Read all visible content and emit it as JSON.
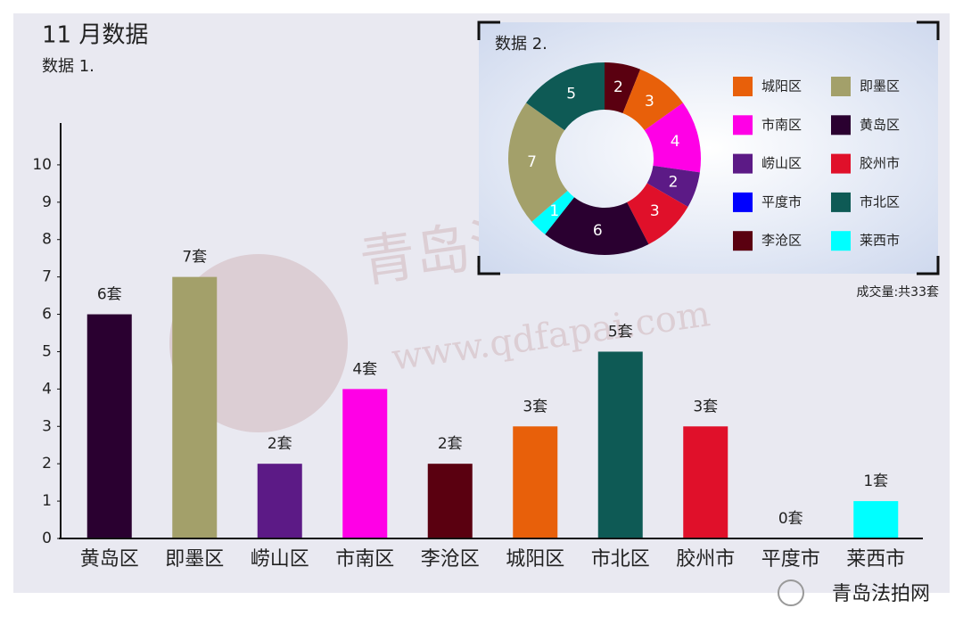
{
  "title": "11 月数据",
  "footer": "青岛法拍网",
  "watermark": [
    "青岛法拍网",
    "www.qdfapai.com"
  ],
  "chart_data": [
    {
      "type": "bar",
      "title": "数据 1.",
      "categories": [
        "黄岛区",
        "即墨区",
        "崂山区",
        "市南区",
        "李沧区",
        "城阳区",
        "市北区",
        "胶州市",
        "平度市",
        "莱西市"
      ],
      "values": [
        6,
        7,
        2,
        4,
        2,
        3,
        5,
        3,
        0,
        1
      ],
      "value_labels": [
        "6套",
        "7套",
        "2套",
        "4套",
        "2套",
        "3套",
        "5套",
        "3套",
        "0套",
        "1套"
      ],
      "colors": [
        "#2a0030",
        "#a3a06a",
        "#5c1a86",
        "#ff00e6",
        "#5a0010",
        "#e8600a",
        "#0e5a55",
        "#e0102a",
        "#0000ff",
        "#00ffff"
      ],
      "ylim": [
        0,
        11
      ],
      "yticks": [
        0,
        1,
        2,
        3,
        4,
        5,
        6,
        7,
        8,
        9,
        10
      ],
      "grid": false
    },
    {
      "type": "pie",
      "title": "数据 2.",
      "donut": true,
      "categories": [
        "城阳区",
        "即墨区",
        "市南区",
        "黄岛区",
        "崂山区",
        "胶州市",
        "平度市",
        "市北区",
        "李沧区",
        "莱西市"
      ],
      "values": [
        3,
        7,
        4,
        6,
        2,
        3,
        0,
        5,
        2,
        1
      ],
      "colors": [
        "#e8600a",
        "#a3a06a",
        "#ff00e6",
        "#2a0030",
        "#5c1a86",
        "#e0102a",
        "#0000ff",
        "#0e5a55",
        "#5a0010",
        "#00ffff"
      ],
      "note": "成交量:共33套",
      "legend": "right"
    }
  ]
}
